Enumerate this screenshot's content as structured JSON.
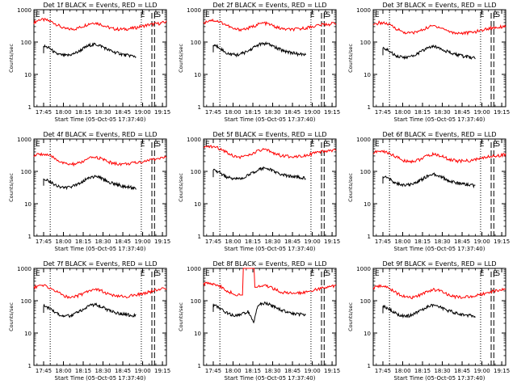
{
  "chart_data": [
    {
      "type": "line",
      "title": "Det 1f BLACK = Events, RED = LLD",
      "xlabel": "Start Time (05-Oct-05 17:37:40)",
      "ylabel": "Counts/sec",
      "y_scale": "log",
      "ylim": [
        1,
        1000
      ],
      "ytick_labels": [
        "1",
        "10",
        "100",
        "1000"
      ],
      "xlim": [
        "17:37:40",
        "19:18:00"
      ],
      "xtick_labels": [
        "17:45",
        "18:00",
        "18:15",
        "18:30",
        "18:45",
        "19:00",
        "19:15"
      ],
      "markers": [
        {
          "label": "E",
          "time": "19:00"
        },
        {
          "label": "E",
          "time": "19:10"
        },
        {
          "label": "S",
          "time": "19:12"
        }
      ],
      "series": [
        {
          "name": "LLD",
          "color": "#ff0000",
          "start": "17:37:40",
          "end": "19:18",
          "values": [
            400,
            500,
            480,
            420,
            330,
            260,
            250,
            260,
            300,
            360,
            400,
            360,
            300,
            260,
            250,
            250,
            260,
            280,
            310,
            340,
            360,
            380,
            420
          ]
        },
        {
          "name": "Events",
          "color": "#000000",
          "start": "17:45",
          "end": "18:55",
          "values": [
            75,
            65,
            45,
            40,
            38,
            42,
            50,
            65,
            80,
            85,
            75,
            60,
            50,
            45,
            40,
            38,
            36
          ]
        }
      ],
      "dotted_lines": [
        "17:50",
        "18:59"
      ],
      "dashed_lines": [
        "19:07",
        "19:09"
      ]
    },
    {
      "type": "line",
      "title": "Det 2f BLACK = Events, RED = LLD",
      "xlabel": "Start Time (05-Oct-05 17:37:40)",
      "ylabel": "Counts/sec",
      "y_scale": "log",
      "ylim": [
        1,
        1000
      ],
      "ytick_labels": [
        "1",
        "10",
        "100",
        "1000"
      ],
      "xlim": [
        "17:37:40",
        "19:18:00"
      ],
      "xtick_labels": [
        "17:45",
        "18:00",
        "18:15",
        "18:30",
        "18:45",
        "19:00",
        "19:15"
      ],
      "markers": [
        {
          "label": "E",
          "time": "19:00"
        },
        {
          "label": "E",
          "time": "19:10"
        },
        {
          "label": "S",
          "time": "19:12"
        }
      ],
      "series": [
        {
          "name": "LLD",
          "color": "#ff0000",
          "start": "17:37:40",
          "end": "19:18",
          "values": [
            380,
            480,
            460,
            400,
            320,
            250,
            245,
            255,
            290,
            350,
            390,
            350,
            290,
            255,
            245,
            245,
            255,
            275,
            300,
            330,
            350,
            360,
            400
          ]
        },
        {
          "name": "Events",
          "color": "#000000",
          "start": "17:45",
          "end": "18:55",
          "values": [
            80,
            70,
            48,
            42,
            40,
            44,
            52,
            68,
            85,
            90,
            80,
            65,
            55,
            50,
            45,
            42,
            40
          ]
        }
      ],
      "dotted_lines": [
        "17:50",
        "18:59"
      ],
      "dashed_lines": [
        "19:07",
        "19:09"
      ]
    },
    {
      "type": "line",
      "title": "Det 3f BLACK = Events, RED = LLD",
      "xlabel": "Start Time (05-Oct-05 17:37:40)",
      "ylabel": "Counts/sec",
      "y_scale": "log",
      "ylim": [
        1,
        1000
      ],
      "ytick_labels": [
        "1",
        "10",
        "100",
        "1000"
      ],
      "xlim": [
        "17:37:40",
        "19:18:00"
      ],
      "xtick_labels": [
        "17:45",
        "18:00",
        "18:15",
        "18:30",
        "18:45",
        "19:00",
        "19:15"
      ],
      "markers": [
        {
          "label": "E",
          "time": "19:00"
        },
        {
          "label": "E",
          "time": "19:10"
        },
        {
          "label": "S",
          "time": "19:12"
        }
      ],
      "series": [
        {
          "name": "LLD",
          "color": "#ff0000",
          "start": "17:37:40",
          "end": "19:18",
          "values": [
            320,
            400,
            380,
            320,
            250,
            200,
            190,
            200,
            230,
            280,
            320,
            290,
            240,
            200,
            190,
            190,
            195,
            210,
            230,
            260,
            280,
            290,
            320
          ]
        },
        {
          "name": "Events",
          "color": "#000000",
          "start": "17:45",
          "end": "18:55",
          "values": [
            65,
            55,
            40,
            35,
            33,
            36,
            44,
            55,
            70,
            72,
            65,
            52,
            44,
            40,
            36,
            34,
            32
          ]
        }
      ],
      "dotted_lines": [
        "17:50",
        "18:59"
      ],
      "dashed_lines": [
        "19:07",
        "19:09"
      ]
    },
    {
      "type": "line",
      "title": "Det 4f BLACK = Events, RED = LLD",
      "xlabel": "Start Time (05-Oct-05 17:37:40)",
      "ylabel": "Counts/sec",
      "y_scale": "log",
      "ylim": [
        1,
        1000
      ],
      "ytick_labels": [
        "1",
        "10",
        "100",
        "1000"
      ],
      "xlim": [
        "17:37:40",
        "19:18:00"
      ],
      "xtick_labels": [
        "17:45",
        "18:00",
        "18:15",
        "18:30",
        "18:45",
        "19:00",
        "19:15"
      ],
      "markers": [
        {
          "label": "E",
          "time": "19:00"
        },
        {
          "label": "E",
          "time": "19:10"
        },
        {
          "label": "S",
          "time": "19:12"
        }
      ],
      "series": [
        {
          "name": "LLD",
          "color": "#ff0000",
          "start": "17:37:40",
          "end": "19:18",
          "values": [
            300,
            350,
            330,
            280,
            220,
            175,
            165,
            170,
            195,
            240,
            280,
            255,
            210,
            180,
            170,
            170,
            175,
            185,
            200,
            220,
            240,
            255,
            280
          ]
        },
        {
          "name": "Events",
          "color": "#000000",
          "start": "17:45",
          "end": "18:55",
          "values": [
            60,
            50,
            38,
            33,
            31,
            34,
            42,
            52,
            66,
            70,
            62,
            50,
            42,
            38,
            34,
            32,
            30
          ]
        }
      ],
      "dotted_lines": [
        "17:50",
        "18:59"
      ],
      "dashed_lines": [
        "19:07",
        "19:09"
      ]
    },
    {
      "type": "line",
      "title": "Det 5f BLACK = Events, RED = LLD",
      "xlabel": "Start Time (05-Oct-05 17:37:40)",
      "ylabel": "Counts/sec",
      "y_scale": "log",
      "ylim": [
        1,
        1000
      ],
      "ytick_labels": [
        "1",
        "10",
        "100",
        "1000"
      ],
      "xlim": [
        "17:37:40",
        "19:18:00"
      ],
      "xtick_labels": [
        "17:45",
        "18:00",
        "18:15",
        "18:30",
        "18:45",
        "19:00",
        "19:15"
      ],
      "markers": [
        {
          "label": "E",
          "time": "19:00"
        },
        {
          "label": "E",
          "time": "19:10"
        },
        {
          "label": "S",
          "time": "19:12"
        }
      ],
      "series": [
        {
          "name": "LLD",
          "color": "#ff0000",
          "start": "17:37:40",
          "end": "19:18",
          "values": [
            520,
            600,
            560,
            480,
            380,
            300,
            280,
            290,
            340,
            420,
            470,
            420,
            350,
            300,
            290,
            290,
            300,
            320,
            350,
            380,
            410,
            430,
            470
          ]
        },
        {
          "name": "Events",
          "color": "#000000",
          "start": "17:45",
          "end": "18:55",
          "values": [
            110,
            95,
            70,
            62,
            58,
            62,
            75,
            95,
            120,
            125,
            110,
            90,
            78,
            72,
            68,
            64,
            62
          ]
        }
      ],
      "dotted_lines": [
        "17:50",
        "18:59"
      ],
      "dashed_lines": [
        "19:07",
        "19:09"
      ]
    },
    {
      "type": "line",
      "title": "Det 6f BLACK = Events, RED = LLD",
      "xlabel": "Start Time (05-Oct-05 17:37:40)",
      "ylabel": "Counts/sec",
      "y_scale": "log",
      "ylim": [
        1,
        1000
      ],
      "ytick_labels": [
        "1",
        "10",
        "100",
        "1000"
      ],
      "xlim": [
        "17:37:40",
        "19:18:00"
      ],
      "xtick_labels": [
        "17:45",
        "18:00",
        "18:15",
        "18:30",
        "18:45",
        "19:00",
        "19:15"
      ],
      "markers": [
        {
          "label": "E",
          "time": "19:00"
        },
        {
          "label": "E",
          "time": "19:10"
        },
        {
          "label": "S",
          "time": "19:12"
        }
      ],
      "series": [
        {
          "name": "LLD",
          "color": "#ff0000",
          "start": "17:37:40",
          "end": "19:18",
          "values": [
            380,
            420,
            400,
            340,
            270,
            215,
            205,
            210,
            245,
            300,
            340,
            310,
            260,
            225,
            210,
            210,
            215,
            230,
            255,
            280,
            300,
            310,
            340
          ]
        },
        {
          "name": "Events",
          "color": "#000000",
          "start": "17:45",
          "end": "18:55",
          "values": [
            70,
            60,
            44,
            39,
            37,
            40,
            48,
            60,
            76,
            80,
            70,
            56,
            48,
            43,
            40,
            38,
            36
          ]
        }
      ],
      "dotted_lines": [
        "17:50",
        "18:59"
      ],
      "dashed_lines": [
        "19:07",
        "19:09"
      ]
    },
    {
      "type": "line",
      "title": "Det 7f BLACK = Events, RED = LLD",
      "xlabel": "Start Time (05-Oct-05 17:37:40)",
      "ylabel": "Counts/sec",
      "y_scale": "log",
      "ylim": [
        1,
        1000
      ],
      "ytick_labels": [
        "1",
        "10",
        "100",
        "1000"
      ],
      "xlim": [
        "17:37:40",
        "19:18:00"
      ],
      "xtick_labels": [
        "17:45",
        "18:00",
        "18:15",
        "18:30",
        "18:45",
        "19:00",
        "19:15"
      ],
      "markers": [
        {
          "label": "E",
          "time": "19:00"
        },
        {
          "label": "E",
          "time": "19:10"
        },
        {
          "label": "S",
          "time": "19:12"
        }
      ],
      "series": [
        {
          "name": "LLD",
          "color": "#ff0000",
          "start": "17:37:40",
          "end": "19:18",
          "values": [
            260,
            300,
            280,
            230,
            180,
            140,
            130,
            135,
            160,
            200,
            235,
            210,
            170,
            145,
            135,
            135,
            140,
            150,
            165,
            185,
            205,
            220,
            250
          ]
        },
        {
          "name": "Events",
          "color": "#000000",
          "start": "17:45",
          "end": "18:55",
          "values": [
            70,
            60,
            42,
            36,
            33,
            36,
            44,
            56,
            72,
            76,
            66,
            52,
            45,
            41,
            38,
            36,
            34
          ]
        }
      ],
      "dotted_lines": [
        "17:50",
        "18:59"
      ],
      "dashed_lines": [
        "19:07",
        "19:09"
      ]
    },
    {
      "type": "line",
      "title": "Det 8f BLACK = Events, RED = LLD",
      "xlabel": "Start Time (05-Oct-05 17:37:40)",
      "ylabel": "Counts/sec",
      "y_scale": "log",
      "ylim": [
        1,
        1000
      ],
      "ytick_labels": [
        "1",
        "10",
        "100",
        "1000"
      ],
      "xlim": [
        "17:37:40",
        "19:18:00"
      ],
      "xtick_labels": [
        "17:45",
        "18:00",
        "18:15",
        "18:30",
        "18:45",
        "19:00",
        "19:15"
      ],
      "markers": [
        {
          "label": "E",
          "time": "19:00"
        },
        {
          "label": "E",
          "time": "19:10"
        },
        {
          "label": "S",
          "time": "19:12"
        }
      ],
      "series": [
        {
          "name": "LLD",
          "color": "#ff0000",
          "start": "17:37:40",
          "end": "19:18",
          "values": [
            330,
            360,
            320,
            260,
            200,
            160,
            150,
            1000,
            1000,
            260,
            300,
            270,
            220,
            185,
            170,
            170,
            175,
            190,
            210,
            230,
            250,
            265,
            300
          ]
        },
        {
          "name": "Events",
          "color": "#000000",
          "start": "17:45",
          "end": "18:55",
          "values": [
            75,
            62,
            45,
            38,
            35,
            38,
            46,
            20,
            80,
            85,
            72,
            58,
            50,
            44,
            40,
            38,
            36
          ]
        }
      ],
      "dotted_lines": [
        "17:50",
        "18:59"
      ],
      "dashed_lines": [
        "19:07",
        "19:09"
      ]
    },
    {
      "type": "line",
      "title": "Det 9f BLACK = Events, RED = LLD",
      "xlabel": "Start Time (05-Oct-05 17:37:40)",
      "ylabel": "Counts/sec",
      "y_scale": "log",
      "ylim": [
        1,
        1000
      ],
      "ytick_labels": [
        "1",
        "10",
        "100",
        "1000"
      ],
      "xlim": [
        "17:37:40",
        "19:18:00"
      ],
      "xtick_labels": [
        "17:45",
        "18:00",
        "18:15",
        "18:30",
        "18:45",
        "19:00",
        "19:15"
      ],
      "markers": [
        {
          "label": "E",
          "time": "19:00"
        },
        {
          "label": "E",
          "time": "19:10"
        },
        {
          "label": "S",
          "time": "19:12"
        }
      ],
      "series": [
        {
          "name": "LLD",
          "color": "#ff0000",
          "start": "17:37:40",
          "end": "19:18",
          "values": [
            240,
            290,
            270,
            220,
            170,
            135,
            125,
            130,
            155,
            195,
            225,
            205,
            165,
            140,
            130,
            130,
            135,
            145,
            160,
            180,
            200,
            215,
            240
          ]
        },
        {
          "name": "Events",
          "color": "#000000",
          "start": "17:45",
          "end": "18:55",
          "values": [
            68,
            58,
            42,
            36,
            33,
            36,
            44,
            56,
            70,
            74,
            64,
            52,
            45,
            40,
            37,
            35,
            33
          ]
        }
      ],
      "dotted_lines": [
        "17:50",
        "18:59"
      ],
      "dashed_lines": [
        "19:07",
        "19:09"
      ]
    }
  ]
}
